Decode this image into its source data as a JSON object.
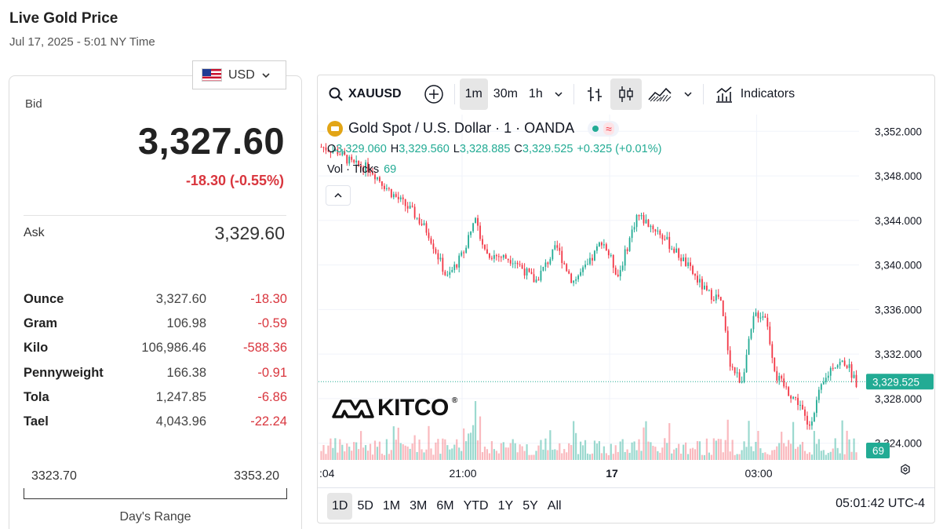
{
  "header": {
    "title": "Live Gold Price",
    "subtitle": "Jul 17, 2025 - 5:01 NY Time"
  },
  "currency": {
    "selected": "USD"
  },
  "bid": {
    "label": "Bid",
    "price": "3,327.60",
    "change": "-18.30 (-0.55%)"
  },
  "ask": {
    "label": "Ask",
    "price": "3,329.60"
  },
  "units": [
    {
      "name": "Ounce",
      "price": "3,327.60",
      "change": "-18.30"
    },
    {
      "name": "Gram",
      "price": "106.98",
      "change": "-0.59"
    },
    {
      "name": "Kilo",
      "price": "106,986.46",
      "change": "-588.36"
    },
    {
      "name": "Pennyweight",
      "price": "166.38",
      "change": "-0.91"
    },
    {
      "name": "Tola",
      "price": "1,247.85",
      "change": "-6.86"
    },
    {
      "name": "Tael",
      "price": "4,043.96",
      "change": "-22.24"
    }
  ],
  "day_range": {
    "low": "3323.70",
    "high": "3353.20",
    "label": "Day's Range"
  },
  "chart_toolbar": {
    "symbol": "XAUUSD",
    "intervals": [
      "1m",
      "30m",
      "1h"
    ],
    "active_interval": "1m",
    "indicators_label": "Indicators"
  },
  "chart_legend": {
    "title": "Gold Spot / U.S. Dollar · 1 · OANDA",
    "o_label": "O",
    "o": "3,329.060",
    "h_label": "H",
    "h": "3,329.560",
    "l_label": "L",
    "l": "3,328.885",
    "c_label": "C",
    "c": "3,329.525",
    "change": "+0.325 (+0.01%)",
    "vol_label": "Vol · Ticks",
    "vol_value": "69"
  },
  "watermark": "KITCO",
  "ranges": [
    "1D",
    "5D",
    "1M",
    "3M",
    "6M",
    "YTD",
    "1Y",
    "5Y",
    "All"
  ],
  "active_range": "1D",
  "clock": "05:01:42 UTC-4",
  "colors": {
    "up": "#22ab94",
    "down": "#f23645",
    "negative": "#d9363e"
  },
  "chart_data": {
    "type": "candlestick",
    "y_ticks": [
      "3,352.000",
      "3,348.000",
      "3,344.000",
      "3,340.000",
      "3,336.000",
      "3,332.000",
      "3,328.000",
      "3,324.000"
    ],
    "ylim": [
      3322.5,
      3353.5
    ],
    "x_ticks": [
      ":04",
      "21:00",
      "17",
      "03:00"
    ],
    "last_price": 3329.525,
    "last_price_label": "3,329.525",
    "last_volume_label": "69",
    "price_path": [
      {
        "t": 0,
        "p": 3350.6
      },
      {
        "t": 0.03,
        "p": 3350.2
      },
      {
        "t": 0.06,
        "p": 3349.0
      },
      {
        "t": 0.09,
        "p": 3348.7
      },
      {
        "t": 0.13,
        "p": 3346.5
      },
      {
        "t": 0.17,
        "p": 3344.8
      },
      {
        "t": 0.2,
        "p": 3342.9
      },
      {
        "t": 0.235,
        "p": 3338.8
      },
      {
        "t": 0.265,
        "p": 3341.0
      },
      {
        "t": 0.285,
        "p": 3344.3
      },
      {
        "t": 0.31,
        "p": 3341.0
      },
      {
        "t": 0.36,
        "p": 3340.5
      },
      {
        "t": 0.4,
        "p": 3338.5
      },
      {
        "t": 0.44,
        "p": 3341.6
      },
      {
        "t": 0.47,
        "p": 3338.5
      },
      {
        "t": 0.5,
        "p": 3340.0
      },
      {
        "t": 0.525,
        "p": 3342.3
      },
      {
        "t": 0.555,
        "p": 3339.0
      },
      {
        "t": 0.59,
        "p": 3344.5
      },
      {
        "t": 0.63,
        "p": 3343.0
      },
      {
        "t": 0.68,
        "p": 3340.2
      },
      {
        "t": 0.72,
        "p": 3337.5
      },
      {
        "t": 0.745,
        "p": 3337.0
      },
      {
        "t": 0.765,
        "p": 3331.0
      },
      {
        "t": 0.785,
        "p": 3329.5
      },
      {
        "t": 0.81,
        "p": 3335.6
      },
      {
        "t": 0.83,
        "p": 3335.5
      },
      {
        "t": 0.85,
        "p": 3330.0
      },
      {
        "t": 0.875,
        "p": 3328.5
      },
      {
        "t": 0.895,
        "p": 3327.5
      },
      {
        "t": 0.91,
        "p": 3325.3
      },
      {
        "t": 0.93,
        "p": 3328.4
      },
      {
        "t": 0.955,
        "p": 3331.0
      },
      {
        "t": 0.98,
        "p": 3331.3
      },
      {
        "t": 1,
        "p": 3329.5
      }
    ]
  }
}
